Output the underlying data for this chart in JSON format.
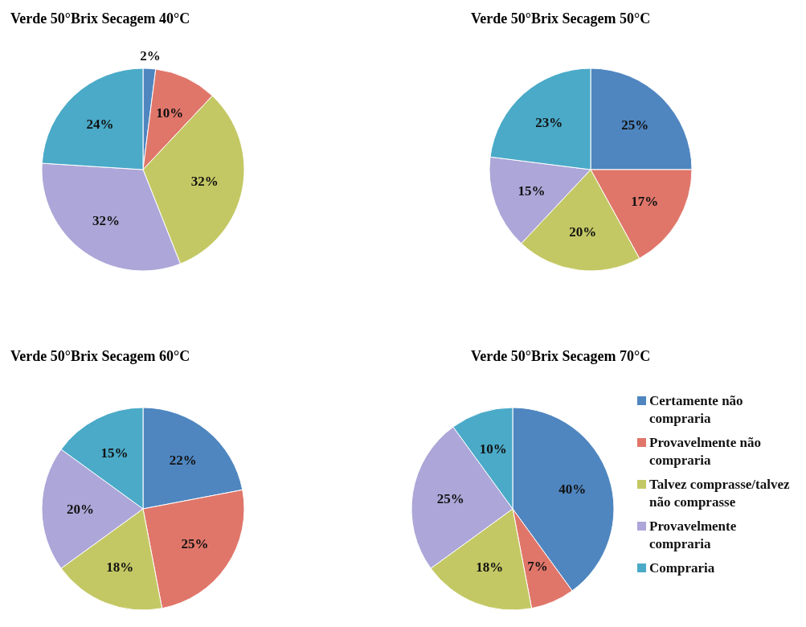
{
  "chart_data": [
    {
      "type": "pie",
      "title": "Verde 50°Brix Secagem 40°C",
      "categories": [
        null,
        null,
        null,
        null,
        null
      ],
      "values": [
        2,
        10,
        32,
        32,
        24
      ],
      "value_labels": [
        "2%",
        "10%",
        "32%",
        "32%",
        "24%"
      ],
      "colors": [
        "#4f86c0",
        "#e0766a",
        "#c4c864",
        "#ada6d8",
        "#4aaac8"
      ]
    },
    {
      "type": "pie",
      "title": "Verde 50°Brix Secagem 50°C",
      "categories": [
        null,
        null,
        null,
        null,
        null
      ],
      "values": [
        25,
        17,
        20,
        15,
        23
      ],
      "value_labels": [
        "25%",
        "17%",
        "20%",
        "15%",
        "23%"
      ],
      "colors": [
        "#4f86c0",
        "#e0766a",
        "#c4c864",
        "#ada6d8",
        "#4aaac8"
      ]
    },
    {
      "type": "pie",
      "title": "Verde 50°Brix Secagem 60°C",
      "categories": [
        null,
        null,
        null,
        null,
        null
      ],
      "values": [
        22,
        25,
        18,
        20,
        15
      ],
      "value_labels": [
        "22%",
        "25%",
        "18%",
        "20%",
        "15%"
      ],
      "colors": [
        "#4f86c0",
        "#e0766a",
        "#c4c864",
        "#ada6d8",
        "#4aaac8"
      ]
    },
    {
      "type": "pie",
      "title": "Verde 50°Brix Secagem 70°C",
      "categories": [
        "Certamente não compraria",
        "Provavelmente  não compraria",
        "Talvez comprasse/talvez não comprasse",
        "Provavelmente compraria",
        "Compraria"
      ],
      "values": [
        40,
        7,
        18,
        25,
        10
      ],
      "value_labels": [
        "40%",
        "7%",
        "18%",
        "25%",
        "10%"
      ],
      "colors": [
        "#4f86c0",
        "#e0766a",
        "#c4c864",
        "#ada6d8",
        "#4aaac8"
      ],
      "legend": "right"
    }
  ]
}
